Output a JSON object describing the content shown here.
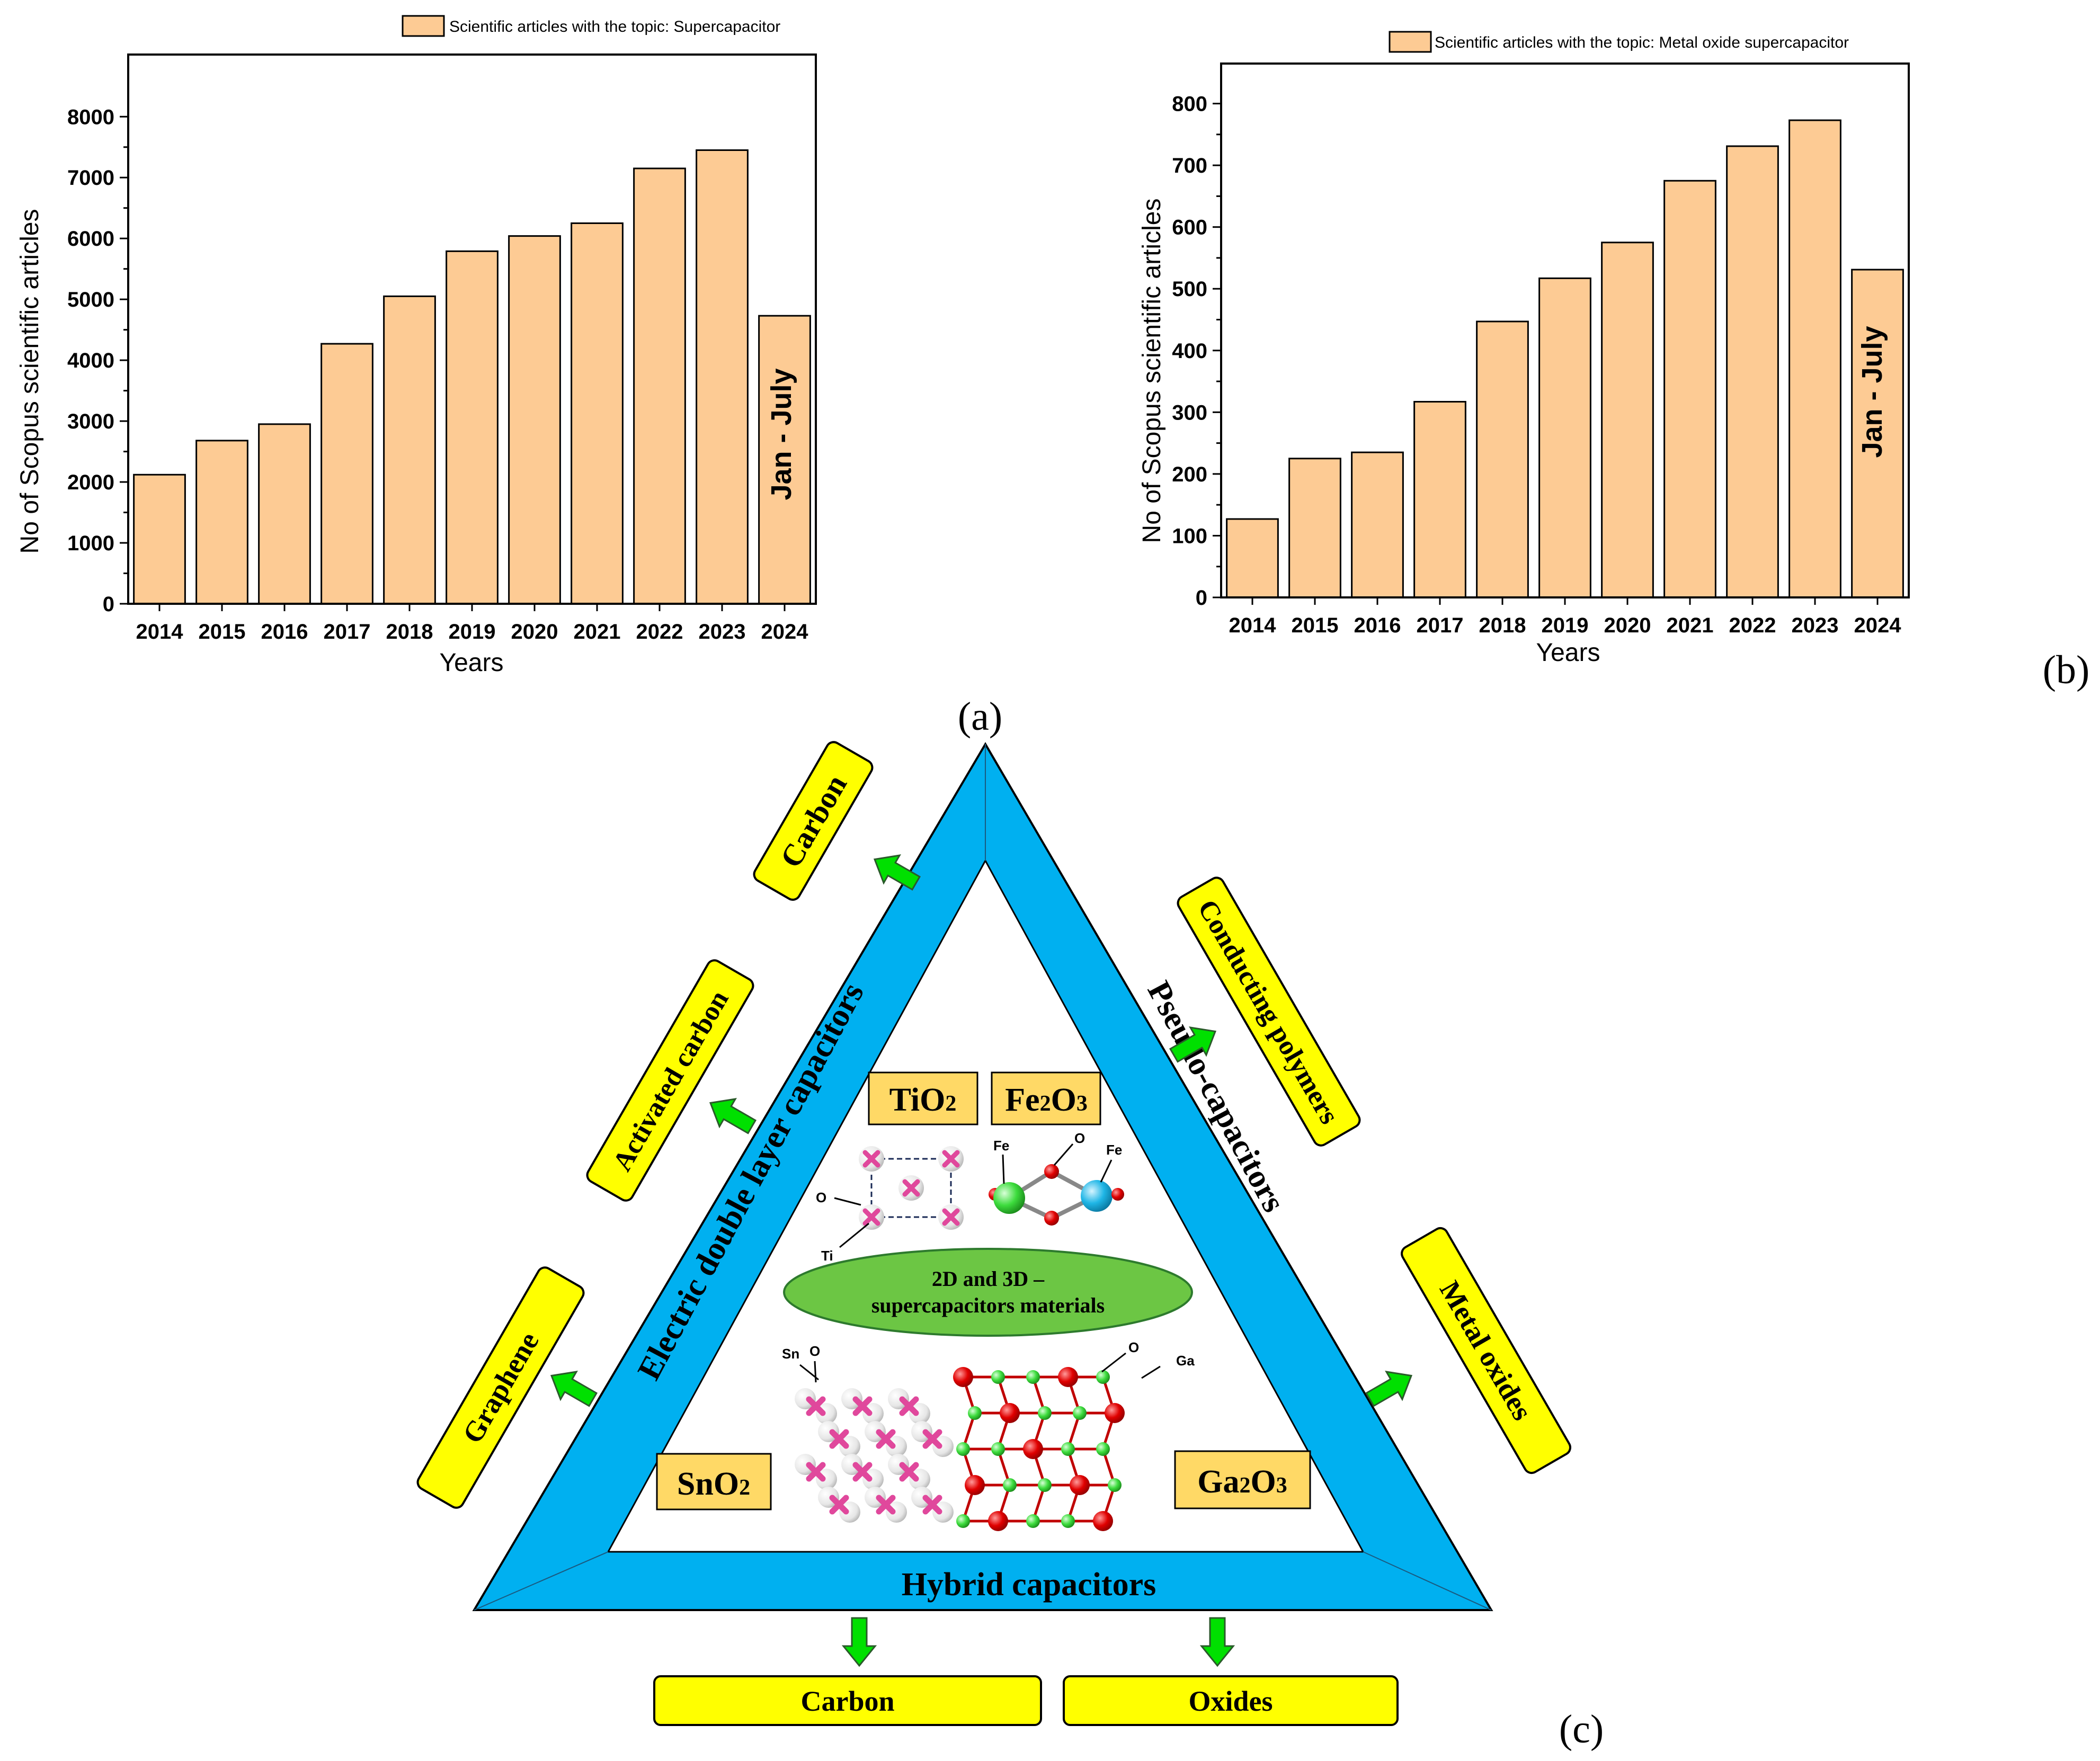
{
  "colors": {
    "bar_fill": "#fdcb94",
    "bar_stroke": "#000000",
    "triangle": "#00b0f0",
    "box_fill": "#ffff00",
    "arrow": "#00e000",
    "ellipse": "#6cc644",
    "formula_box": "#ffd966",
    "pink_atom": "#e0489c",
    "red_atom": "#e00000",
    "green_atom": "#3ddc3d",
    "cyan_atom": "#1fb6e6"
  },
  "chart_data": [
    {
      "type": "bar",
      "panel_label": "(a)",
      "legend": "Scientific articles with the topic: Supercapacitor",
      "legend_position": "top",
      "categories": [
        "2014",
        "2015",
        "2016",
        "2017",
        "2018",
        "2019",
        "2020",
        "2021",
        "2022",
        "2023",
        "2024"
      ],
      "values": [
        2120,
        2680,
        2950,
        4270,
        5050,
        5790,
        6040,
        6250,
        7150,
        7450,
        4730
      ],
      "xlabel": "Years",
      "ylabel": "No of Scopus scientific articles",
      "ylim": [
        0,
        8500
      ],
      "yticks": [
        "0",
        "1000",
        "2000",
        "3000",
        "4000",
        "5000",
        "6000",
        "7000",
        "8000"
      ],
      "grid": false,
      "annotation": "Jan - July"
    },
    {
      "type": "bar",
      "panel_label": "(b)",
      "legend": "Scientific articles with the topic: Metal oxide supercapacitor",
      "legend_position": "top",
      "categories": [
        "2014",
        "2015",
        "2016",
        "2017",
        "2018",
        "2019",
        "2020",
        "2021",
        "2022",
        "2023",
        "2024"
      ],
      "values": [
        127,
        225,
        235,
        317,
        447,
        517,
        575,
        675,
        731,
        773,
        531
      ],
      "xlabel": "Years",
      "ylabel": "No of Scopus scientific articles",
      "ylim": [
        0,
        850
      ],
      "yticks": [
        "0",
        "100",
        "200",
        "300",
        "400",
        "500",
        "600",
        "700",
        "800"
      ],
      "grid": false,
      "annotation": "Jan - July"
    }
  ],
  "diagram": {
    "panel_label": "(c)",
    "left_side": "Electric double layer capacitors",
    "right_side": "Pseudo-capacitors",
    "bottom_side": "Hybrid capacitors",
    "left_boxes": [
      "Carbon",
      "Activated carbon",
      "Graphene"
    ],
    "right_boxes": [
      "Conducting polymers",
      "Metal oxides"
    ],
    "bottom_boxes": [
      "Carbon",
      "Oxides"
    ],
    "center_line1": "2D and 3D –",
    "center_line2": "supercapacitors materials",
    "materials": {
      "tio2": {
        "main": "TiO",
        "sub": "2"
      },
      "fe2o3": {
        "a": "Fe",
        "b": "2",
        "c": "O",
        "d": "3"
      },
      "sno2": {
        "main": "SnO",
        "sub": "2"
      },
      "ga2o3": {
        "a": "Ga",
        "b": "2",
        "c": "O",
        "d": "3"
      }
    },
    "atom_labels": {
      "ti": "Ti",
      "ti_o": "O",
      "fe1": "Fe",
      "fe_o": "O",
      "fe2": "Fe",
      "sn": "Sn",
      "sn_o": "O",
      "ga_o": "O",
      "ga": "Ga"
    }
  }
}
